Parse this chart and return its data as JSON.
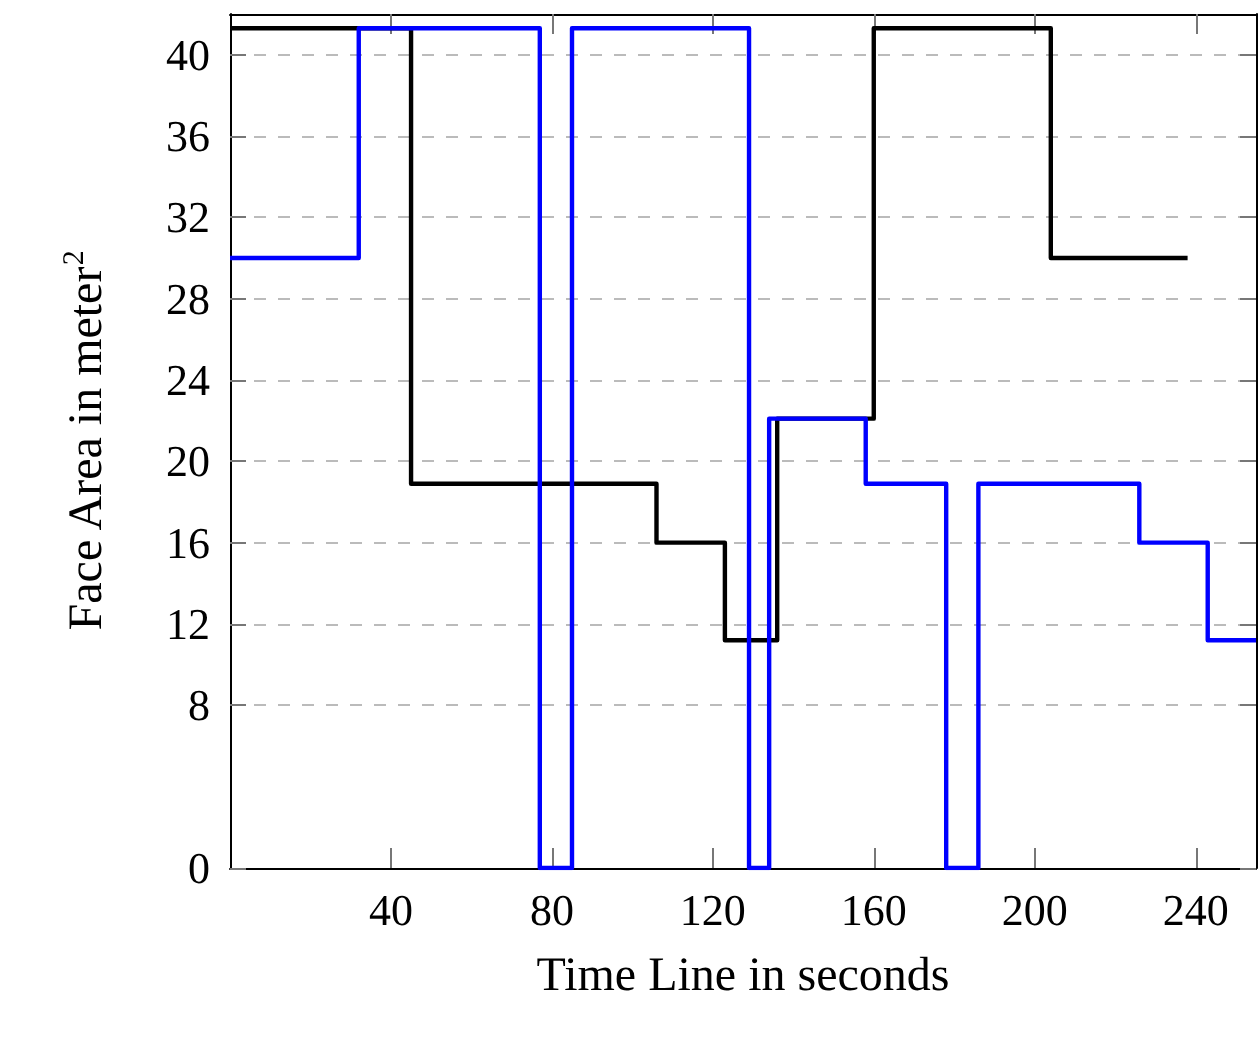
{
  "chart_data": {
    "type": "step",
    "xlabel": "Time Line in seconds",
    "ylabel": "Face Area in meter$^{2}$",
    "xlim": [
      0,
      255
    ],
    "xticks": [
      40,
      80,
      120,
      160,
      200,
      240
    ],
    "ylim": [
      0,
      42
    ],
    "yticks": [
      0,
      8,
      12,
      16,
      20,
      24,
      28,
      32,
      36,
      40
    ],
    "grid": "y",
    "marker": "none",
    "line_style": "solid",
    "series": [
      {
        "color": "#000000",
        "x": [
          0,
          45,
          106,
          123,
          136,
          160,
          204,
          238
        ],
        "values": [
          41.3,
          18.9,
          16,
          11.2,
          22.1,
          41.3,
          30,
          30
        ]
      },
      {
        "color": "#0000ff",
        "x": [
          0,
          32,
          77,
          85,
          129,
          134,
          158,
          178,
          186,
          226,
          243,
          255
        ],
        "values": [
          30,
          41.3,
          0,
          41.3,
          0,
          22.1,
          18.9,
          0,
          18.9,
          16,
          11.2,
          11.2
        ]
      }
    ]
  }
}
